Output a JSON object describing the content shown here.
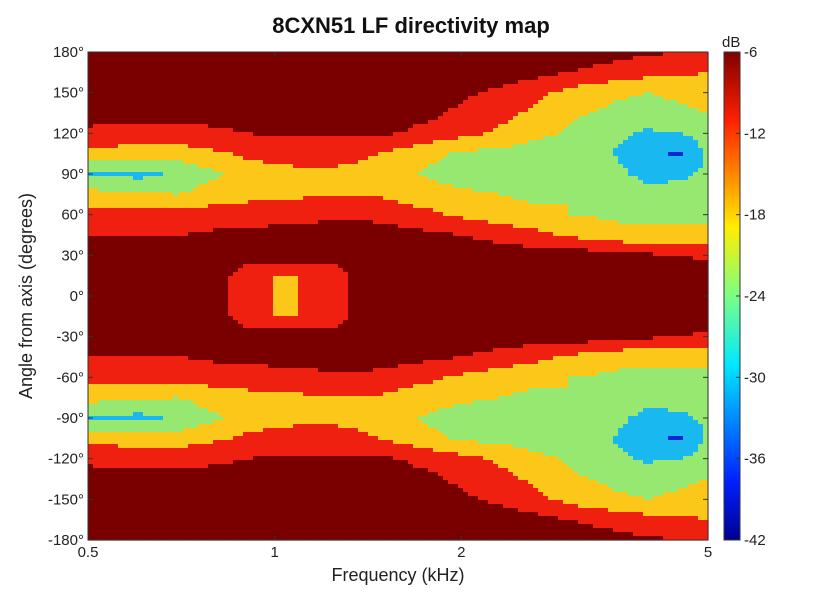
{
  "chart_data": {
    "type": "heatmap",
    "title": "8CXN51 LF directivity map",
    "xlabel": "Frequency (kHz)",
    "ylabel": "Angle from axis (degrees)",
    "x_scale": "log",
    "xlim": [
      0.5,
      5
    ],
    "ylim": [
      -180,
      180
    ],
    "x_ticks": [
      {
        "value": 0.5,
        "label": "0.5"
      },
      {
        "value": 1,
        "label": "1"
      },
      {
        "value": 2,
        "label": "2"
      },
      {
        "value": 5,
        "label": "5"
      }
    ],
    "y_ticks": [
      {
        "value": 180,
        "label": "180°"
      },
      {
        "value": 150,
        "label": "150°"
      },
      {
        "value": 120,
        "label": "120°"
      },
      {
        "value": 90,
        "label": "90°"
      },
      {
        "value": 60,
        "label": "60°"
      },
      {
        "value": 30,
        "label": "30°"
      },
      {
        "value": 0,
        "label": "0°"
      },
      {
        "value": -30,
        "label": "-30°"
      },
      {
        "value": -60,
        "label": "-60°"
      },
      {
        "value": -90,
        "label": "-90°"
      },
      {
        "value": -120,
        "label": "-120°"
      },
      {
        "value": -150,
        "label": "-150°"
      },
      {
        "value": -180,
        "label": "-180°"
      }
    ],
    "colorbar": {
      "unit": "dB",
      "range": [
        -42,
        -6
      ],
      "ticks": [
        {
          "value": -6,
          "label": "-6"
        },
        {
          "value": -12,
          "label": "-12"
        },
        {
          "value": -18,
          "label": "-18"
        },
        {
          "value": -24,
          "label": "-24"
        },
        {
          "value": -30,
          "label": "-30"
        },
        {
          "value": -36,
          "label": "-36"
        },
        {
          "value": -42,
          "label": "-42"
        }
      ],
      "colormap": "jet"
    },
    "symmetric_about_zero": true,
    "level_colors": [
      "#7a0000",
      "#f02010",
      "#fbc81a",
      "#96e870",
      "#1ab8f0",
      "#0a28d2"
    ],
    "x_nodes": [
      0.5,
      0.6,
      0.7,
      0.8,
      0.9,
      1.0,
      1.1,
      1.25,
      1.4,
      1.6,
      1.8,
      2.0,
      2.3,
      2.6,
      3.0,
      3.5,
      4.0,
      4.5,
      5.0
    ],
    "y_nodes": [
      0,
      15,
      30,
      45,
      60,
      75,
      90,
      105,
      120,
      135,
      150,
      165,
      180
    ],
    "z_db": [
      [
        -6,
        -6,
        -6,
        -6,
        -12,
        -15,
        -15,
        -12,
        -6,
        -6,
        -6,
        -6,
        -6,
        -6,
        -6,
        -6,
        -6,
        -6,
        -6
      ],
      [
        -6,
        -6,
        -6,
        -6,
        -12,
        -15,
        -15,
        -12,
        -6,
        -6,
        -6,
        -6,
        -6,
        -6,
        -6,
        -6,
        -6,
        -6,
        -6
      ],
      [
        -6,
        -6,
        -6,
        -6,
        -6,
        -6,
        -6,
        -6,
        -6,
        -6,
        -6,
        -6,
        -6,
        -6,
        -6,
        -6,
        -8,
        -9,
        -10
      ],
      [
        -9,
        -9,
        -9,
        -8,
        -8,
        -7,
        -7,
        -6,
        -6,
        -7,
        -8,
        -9,
        -11,
        -13,
        -16,
        -19,
        -20,
        -20,
        -20
      ],
      [
        -13,
        -13,
        -13,
        -12,
        -12,
        -11,
        -11,
        -10,
        -10,
        -12,
        -14,
        -16,
        -18,
        -20,
        -21,
        -22,
        -22,
        -22,
        -22
      ],
      [
        -19,
        -20,
        -21,
        -18,
        -17,
        -16,
        -16,
        -15,
        -15,
        -17,
        -19,
        -20,
        -21,
        -22,
        -21,
        -23,
        -25,
        -25,
        -25
      ],
      [
        -27,
        -29,
        -26,
        -22,
        -18,
        -17,
        -16,
        -16,
        -17,
        -20,
        -22,
        -23,
        -24,
        -25,
        -24,
        -25,
        -29,
        -28,
        -26
      ],
      [
        -17,
        -18,
        -18,
        -16,
        -14,
        -13,
        -13,
        -13,
        -14,
        -17,
        -20,
        -22,
        -23,
        -24,
        -25,
        -27,
        -31,
        -34,
        -26
      ],
      [
        -10,
        -11,
        -11,
        -10,
        -9,
        -8,
        -8,
        -8,
        -8,
        -9,
        -11,
        -13,
        -16,
        -19,
        -22,
        -25,
        -28,
        -27,
        -24
      ],
      [
        -7,
        -7,
        -7,
        -7,
        -7,
        -6,
        -6,
        -6,
        -6,
        -7,
        -8,
        -10,
        -13,
        -16,
        -20,
        -22,
        -23,
        -22,
        -21
      ],
      [
        -6,
        -6,
        -6,
        -6,
        -6,
        -6,
        -6,
        -6,
        -6,
        -6,
        -7,
        -8,
        -10,
        -13,
        -17,
        -20,
        -21,
        -20,
        -18
      ],
      [
        -6,
        -6,
        -6,
        -6,
        -6,
        -6,
        -6,
        -6,
        -6,
        -6,
        -6,
        -6,
        -6,
        -7,
        -9,
        -11,
        -13,
        -14,
        -15
      ],
      [
        -6,
        -6,
        -6,
        -6,
        -6,
        -6,
        -6,
        -6,
        -6,
        -6,
        -6,
        -6,
        -6,
        -6,
        -6,
        -7,
        -8,
        -9,
        -10
      ]
    ]
  }
}
